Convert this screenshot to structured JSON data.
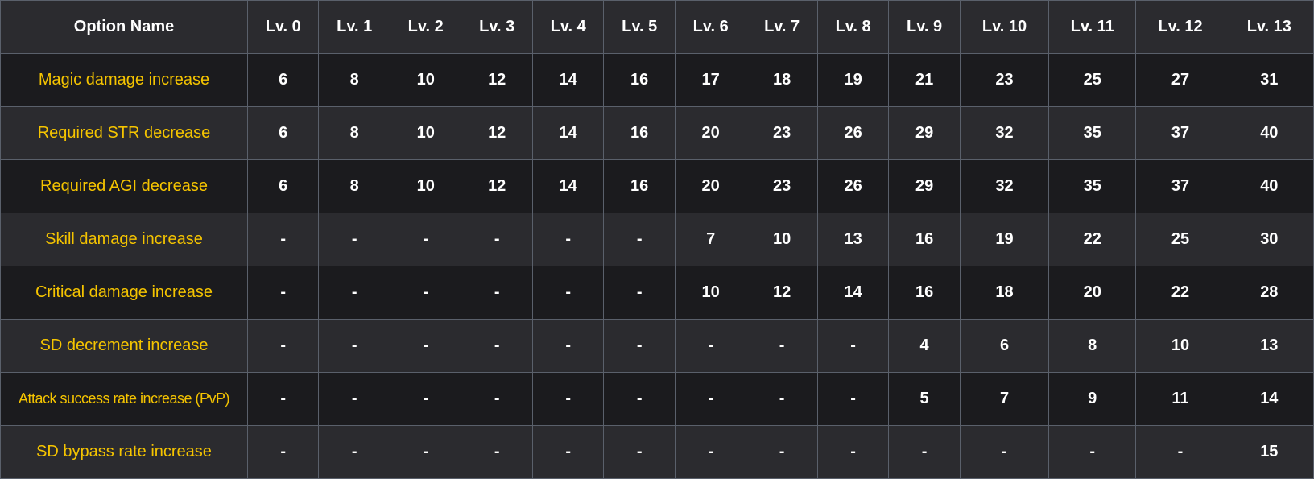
{
  "colors": {
    "option_text": "#f5c400",
    "value_text": "#ffffff",
    "header_bg": "#2b2b2f",
    "dark_row_bg": "#1b1b1e",
    "border": "#5a606b"
  },
  "table": {
    "headers": [
      "Option Name",
      "Lv. 0",
      "Lv. 1",
      "Lv. 2",
      "Lv. 3",
      "Lv. 4",
      "Lv. 5",
      "Lv. 6",
      "Lv. 7",
      "Lv. 8",
      "Lv. 9",
      "Lv. 10",
      "Lv. 11",
      "Lv. 12",
      "Lv. 13"
    ],
    "rows": [
      {
        "name": "Magic damage increase",
        "values": [
          "6",
          "8",
          "10",
          "12",
          "14",
          "16",
          "17",
          "18",
          "19",
          "21",
          "23",
          "25",
          "27",
          "31"
        ]
      },
      {
        "name": "Required STR decrease",
        "values": [
          "6",
          "8",
          "10",
          "12",
          "14",
          "16",
          "20",
          "23",
          "26",
          "29",
          "32",
          "35",
          "37",
          "40"
        ]
      },
      {
        "name": "Required AGI decrease",
        "values": [
          "6",
          "8",
          "10",
          "12",
          "14",
          "16",
          "20",
          "23",
          "26",
          "29",
          "32",
          "35",
          "37",
          "40"
        ]
      },
      {
        "name": "Skill damage increase",
        "values": [
          "-",
          "-",
          "-",
          "-",
          "-",
          "-",
          "7",
          "10",
          "13",
          "16",
          "19",
          "22",
          "25",
          "30"
        ]
      },
      {
        "name": "Critical damage increase",
        "values": [
          "-",
          "-",
          "-",
          "-",
          "-",
          "-",
          "10",
          "12",
          "14",
          "16",
          "18",
          "20",
          "22",
          "28"
        ]
      },
      {
        "name": "SD decrement increase",
        "values": [
          "-",
          "-",
          "-",
          "-",
          "-",
          "-",
          "-",
          "-",
          "-",
          "4",
          "6",
          "8",
          "10",
          "13"
        ]
      },
      {
        "name": "Attack success rate increase (PvP)",
        "values": [
          "-",
          "-",
          "-",
          "-",
          "-",
          "-",
          "-",
          "-",
          "-",
          "5",
          "7",
          "9",
          "11",
          "14"
        ]
      },
      {
        "name": "SD bypass rate increase",
        "values": [
          "-",
          "-",
          "-",
          "-",
          "-",
          "-",
          "-",
          "-",
          "-",
          "-",
          "-",
          "-",
          "-",
          "15"
        ]
      }
    ]
  }
}
